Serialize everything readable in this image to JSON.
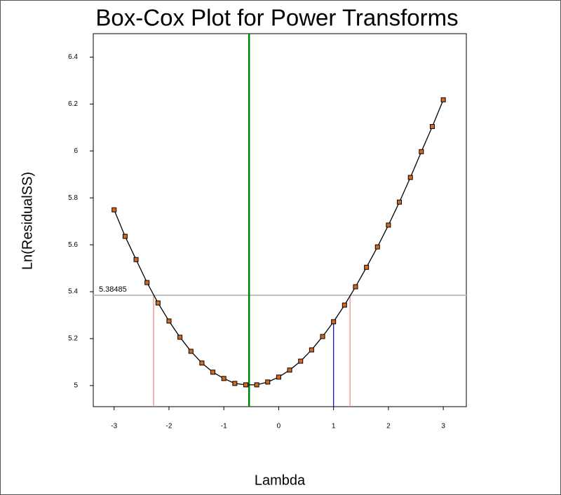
{
  "chart_data": {
    "type": "line",
    "title": "Box-Cox Plot for Power Transforms",
    "x_label": "Lambda",
    "y_label": "Ln(ResidualSS)",
    "x": [
      -3,
      -2.8,
      -2.6,
      -2.4,
      -2.2,
      -2,
      -1.8,
      -1.6,
      -1.4,
      -1.2,
      -1,
      -0.8,
      -0.6,
      -0.4,
      -0.2,
      0,
      0.2,
      0.4,
      0.6,
      0.8,
      1,
      1.2,
      1.4,
      1.6,
      1.8,
      2,
      2.2,
      2.4,
      2.6,
      2.8,
      3
    ],
    "series": [
      {
        "color": "#000000",
        "marker_color": "#d2691e",
        "values": [
          5.749,
          5.636,
          5.537,
          5.439,
          5.352,
          5.275,
          5.206,
          5.146,
          5.096,
          5.057,
          5.03,
          5.009,
          5.003,
          5.003,
          5.015,
          5.036,
          5.066,
          5.104,
          5.152,
          5.209,
          5.272,
          5.343,
          5.421,
          5.504,
          5.591,
          5.684,
          5.782,
          5.887,
          5.997,
          6.104,
          6.218
        ]
      }
    ],
    "xlim": [
      -3.38,
      3.42
    ],
    "ylim": [
      4.91,
      6.5
    ],
    "xticks": [
      -3,
      -2,
      -1,
      0,
      1,
      2,
      3
    ],
    "yticks": [
      5,
      5.2,
      5.4,
      5.6,
      5.8,
      6,
      6.2,
      6.4
    ],
    "threshold": 5.38485,
    "threshold_color": "#c0c0c0",
    "best_lambda": -0.54,
    "best_color": "#008000",
    "ci": [
      -2.28,
      1.3
    ],
    "ci_color": "#f08080",
    "current_lambda": 1,
    "current_color": "#0000cd"
  }
}
